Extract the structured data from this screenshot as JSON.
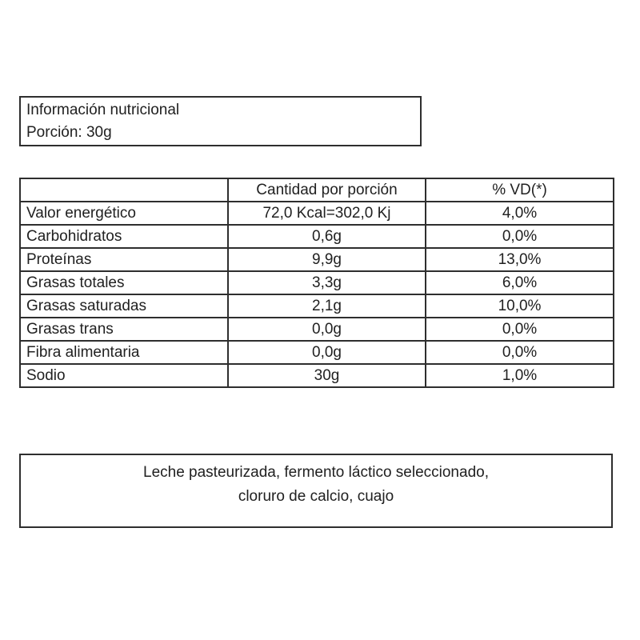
{
  "header_box": {
    "title": "Información nutricional",
    "portion": "Porción: 30g"
  },
  "nutrition_table": {
    "columns": [
      "",
      "Cantidad por porción",
      "% VD(*)"
    ],
    "rows": [
      {
        "label": "Valor energético",
        "amount": "72,0 Kcal=302,0 Kj",
        "vd": "4,0%"
      },
      {
        "label": "Carbohidratos",
        "amount": "0,6g",
        "vd": "0,0%"
      },
      {
        "label": "Proteínas",
        "amount": "9,9g",
        "vd": "13,0%"
      },
      {
        "label": "Grasas totales",
        "amount": "3,3g",
        "vd": "6,0%"
      },
      {
        "label": "Grasas saturadas",
        "amount": "2,1g",
        "vd": "10,0%"
      },
      {
        "label": "Grasas trans",
        "amount": "0,0g",
        "vd": "0,0%"
      },
      {
        "label": "Fibra alimentaria",
        "amount": "0,0g",
        "vd": "0,0%"
      },
      {
        "label": "Sodio",
        "amount": "30g",
        "vd": "1,0%"
      }
    ]
  },
  "ingredients_box": {
    "line1": "Leche pasteurizada, fermento láctico seleccionado,",
    "line2": "cloruro de calcio, cuajo"
  }
}
